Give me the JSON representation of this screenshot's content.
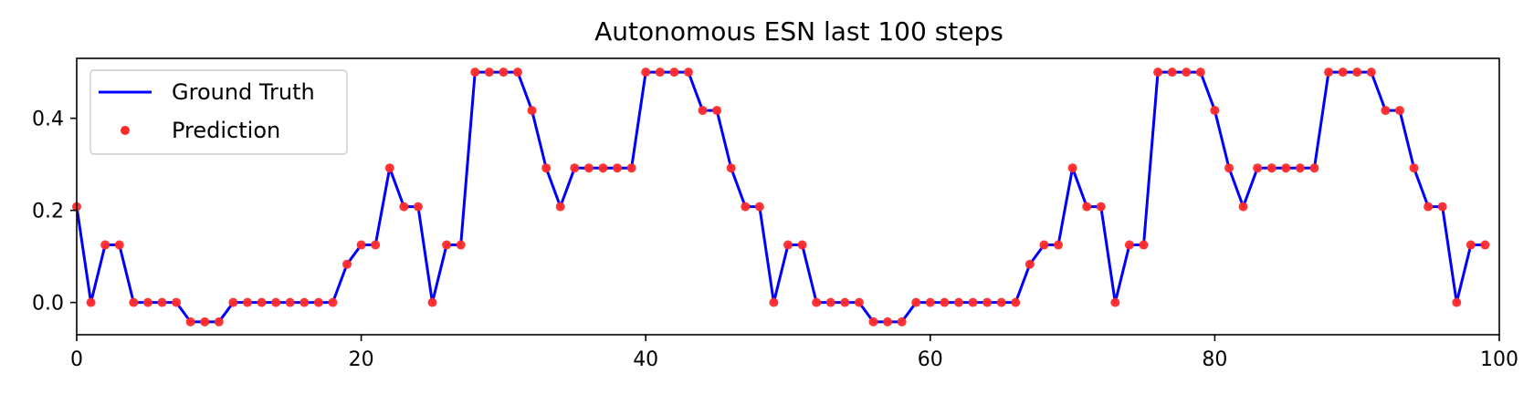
{
  "chart_data": {
    "type": "line",
    "title": "Autonomous ESN last 100 steps",
    "xlabel": "",
    "ylabel": "",
    "xlim": [
      0,
      100
    ],
    "ylim": [
      -0.07,
      0.53
    ],
    "x_ticks": [
      0,
      20,
      40,
      60,
      80,
      100
    ],
    "y_ticks": [
      0.0,
      0.2,
      0.4
    ],
    "x_tick_labels": [
      "0",
      "20",
      "40",
      "60",
      "80",
      "100"
    ],
    "y_tick_labels": [
      "0.0",
      "0.2",
      "0.4"
    ],
    "grid": false,
    "legend": {
      "placement": "top-left",
      "entries": [
        "Ground Truth",
        "Prediction"
      ]
    },
    "series": [
      {
        "name": "Ground Truth",
        "style": "line",
        "color": "#0000ff",
        "x": [
          0,
          1,
          2,
          3,
          4,
          5,
          6,
          7,
          8,
          9,
          10,
          11,
          12,
          13,
          14,
          15,
          16,
          17,
          18,
          19,
          20,
          21,
          22,
          23,
          24,
          25,
          26,
          27,
          28,
          29,
          30,
          31,
          32,
          33,
          34,
          35,
          36,
          37,
          38,
          39,
          40,
          41,
          42,
          43,
          44,
          45,
          46,
          47,
          48,
          49,
          50,
          51,
          52,
          53,
          54,
          55,
          56,
          57,
          58,
          59,
          60,
          61,
          62,
          63,
          64,
          65,
          66,
          67,
          68,
          69,
          70,
          71,
          72,
          73,
          74,
          75,
          76,
          77,
          78,
          79,
          80,
          81,
          82,
          83,
          84,
          85,
          86,
          87,
          88,
          89,
          90,
          91,
          92,
          93,
          94,
          95,
          96,
          97,
          98,
          99
        ],
        "values": [
          0.208,
          0,
          0.125,
          0.125,
          0,
          0,
          0,
          0,
          -0.042,
          -0.042,
          -0.042,
          0,
          0,
          0,
          0,
          0,
          0,
          0,
          0,
          0.083,
          0.125,
          0.125,
          0.292,
          0.208,
          0.208,
          0,
          0.125,
          0.125,
          0.5,
          0.5,
          0.5,
          0.5,
          0.417,
          0.292,
          0.208,
          0.292,
          0.292,
          0.292,
          0.292,
          0.292,
          0.5,
          0.5,
          0.5,
          0.5,
          0.417,
          0.417,
          0.292,
          0.208,
          0.208,
          0,
          0.125,
          0.125,
          0,
          0,
          0,
          0,
          -0.042,
          -0.042,
          -0.042,
          0,
          0,
          0,
          0,
          0,
          0,
          0,
          0,
          0.083,
          0.125,
          0.125,
          0.292,
          0.208,
          0.208,
          0,
          0.125,
          0.125,
          0.5,
          0.5,
          0.5,
          0.5,
          0.417,
          0.292,
          0.208,
          0.292,
          0.292,
          0.292,
          0.292,
          0.292,
          0.5,
          0.5,
          0.5,
          0.5,
          0.417,
          0.417,
          0.292,
          0.208,
          0.208,
          0,
          0.125,
          0.125
        ]
      },
      {
        "name": "Prediction",
        "style": "markers",
        "color": "#ff2a2a",
        "x": [
          0,
          1,
          2,
          3,
          4,
          5,
          6,
          7,
          8,
          9,
          10,
          11,
          12,
          13,
          14,
          15,
          16,
          17,
          18,
          19,
          20,
          21,
          22,
          23,
          24,
          25,
          26,
          27,
          28,
          29,
          30,
          31,
          32,
          33,
          34,
          35,
          36,
          37,
          38,
          39,
          40,
          41,
          42,
          43,
          44,
          45,
          46,
          47,
          48,
          49,
          50,
          51,
          52,
          53,
          54,
          55,
          56,
          57,
          58,
          59,
          60,
          61,
          62,
          63,
          64,
          65,
          66,
          67,
          68,
          69,
          70,
          71,
          72,
          73,
          74,
          75,
          76,
          77,
          78,
          79,
          80,
          81,
          82,
          83,
          84,
          85,
          86,
          87,
          88,
          89,
          90,
          91,
          92,
          93,
          94,
          95,
          96,
          97,
          98,
          99
        ],
        "values": [
          0.208,
          0,
          0.125,
          0.125,
          0,
          0,
          0,
          0,
          -0.042,
          -0.042,
          -0.042,
          0,
          0,
          0,
          0,
          0,
          0,
          0,
          0,
          0.083,
          0.125,
          0.125,
          0.292,
          0.208,
          0.208,
          0,
          0.125,
          0.125,
          0.5,
          0.5,
          0.5,
          0.5,
          0.417,
          0.292,
          0.208,
          0.292,
          0.292,
          0.292,
          0.292,
          0.292,
          0.5,
          0.5,
          0.5,
          0.5,
          0.417,
          0.417,
          0.292,
          0.208,
          0.208,
          0,
          0.125,
          0.125,
          0,
          0,
          0,
          0,
          -0.042,
          -0.042,
          -0.042,
          0,
          0,
          0,
          0,
          0,
          0,
          0,
          0,
          0.083,
          0.125,
          0.125,
          0.292,
          0.208,
          0.208,
          0,
          0.125,
          0.125,
          0.5,
          0.5,
          0.5,
          0.5,
          0.417,
          0.292,
          0.208,
          0.292,
          0.292,
          0.292,
          0.292,
          0.292,
          0.5,
          0.5,
          0.5,
          0.5,
          0.417,
          0.417,
          0.292,
          0.208,
          0.208,
          0,
          0.125,
          0.125
        ]
      }
    ]
  }
}
